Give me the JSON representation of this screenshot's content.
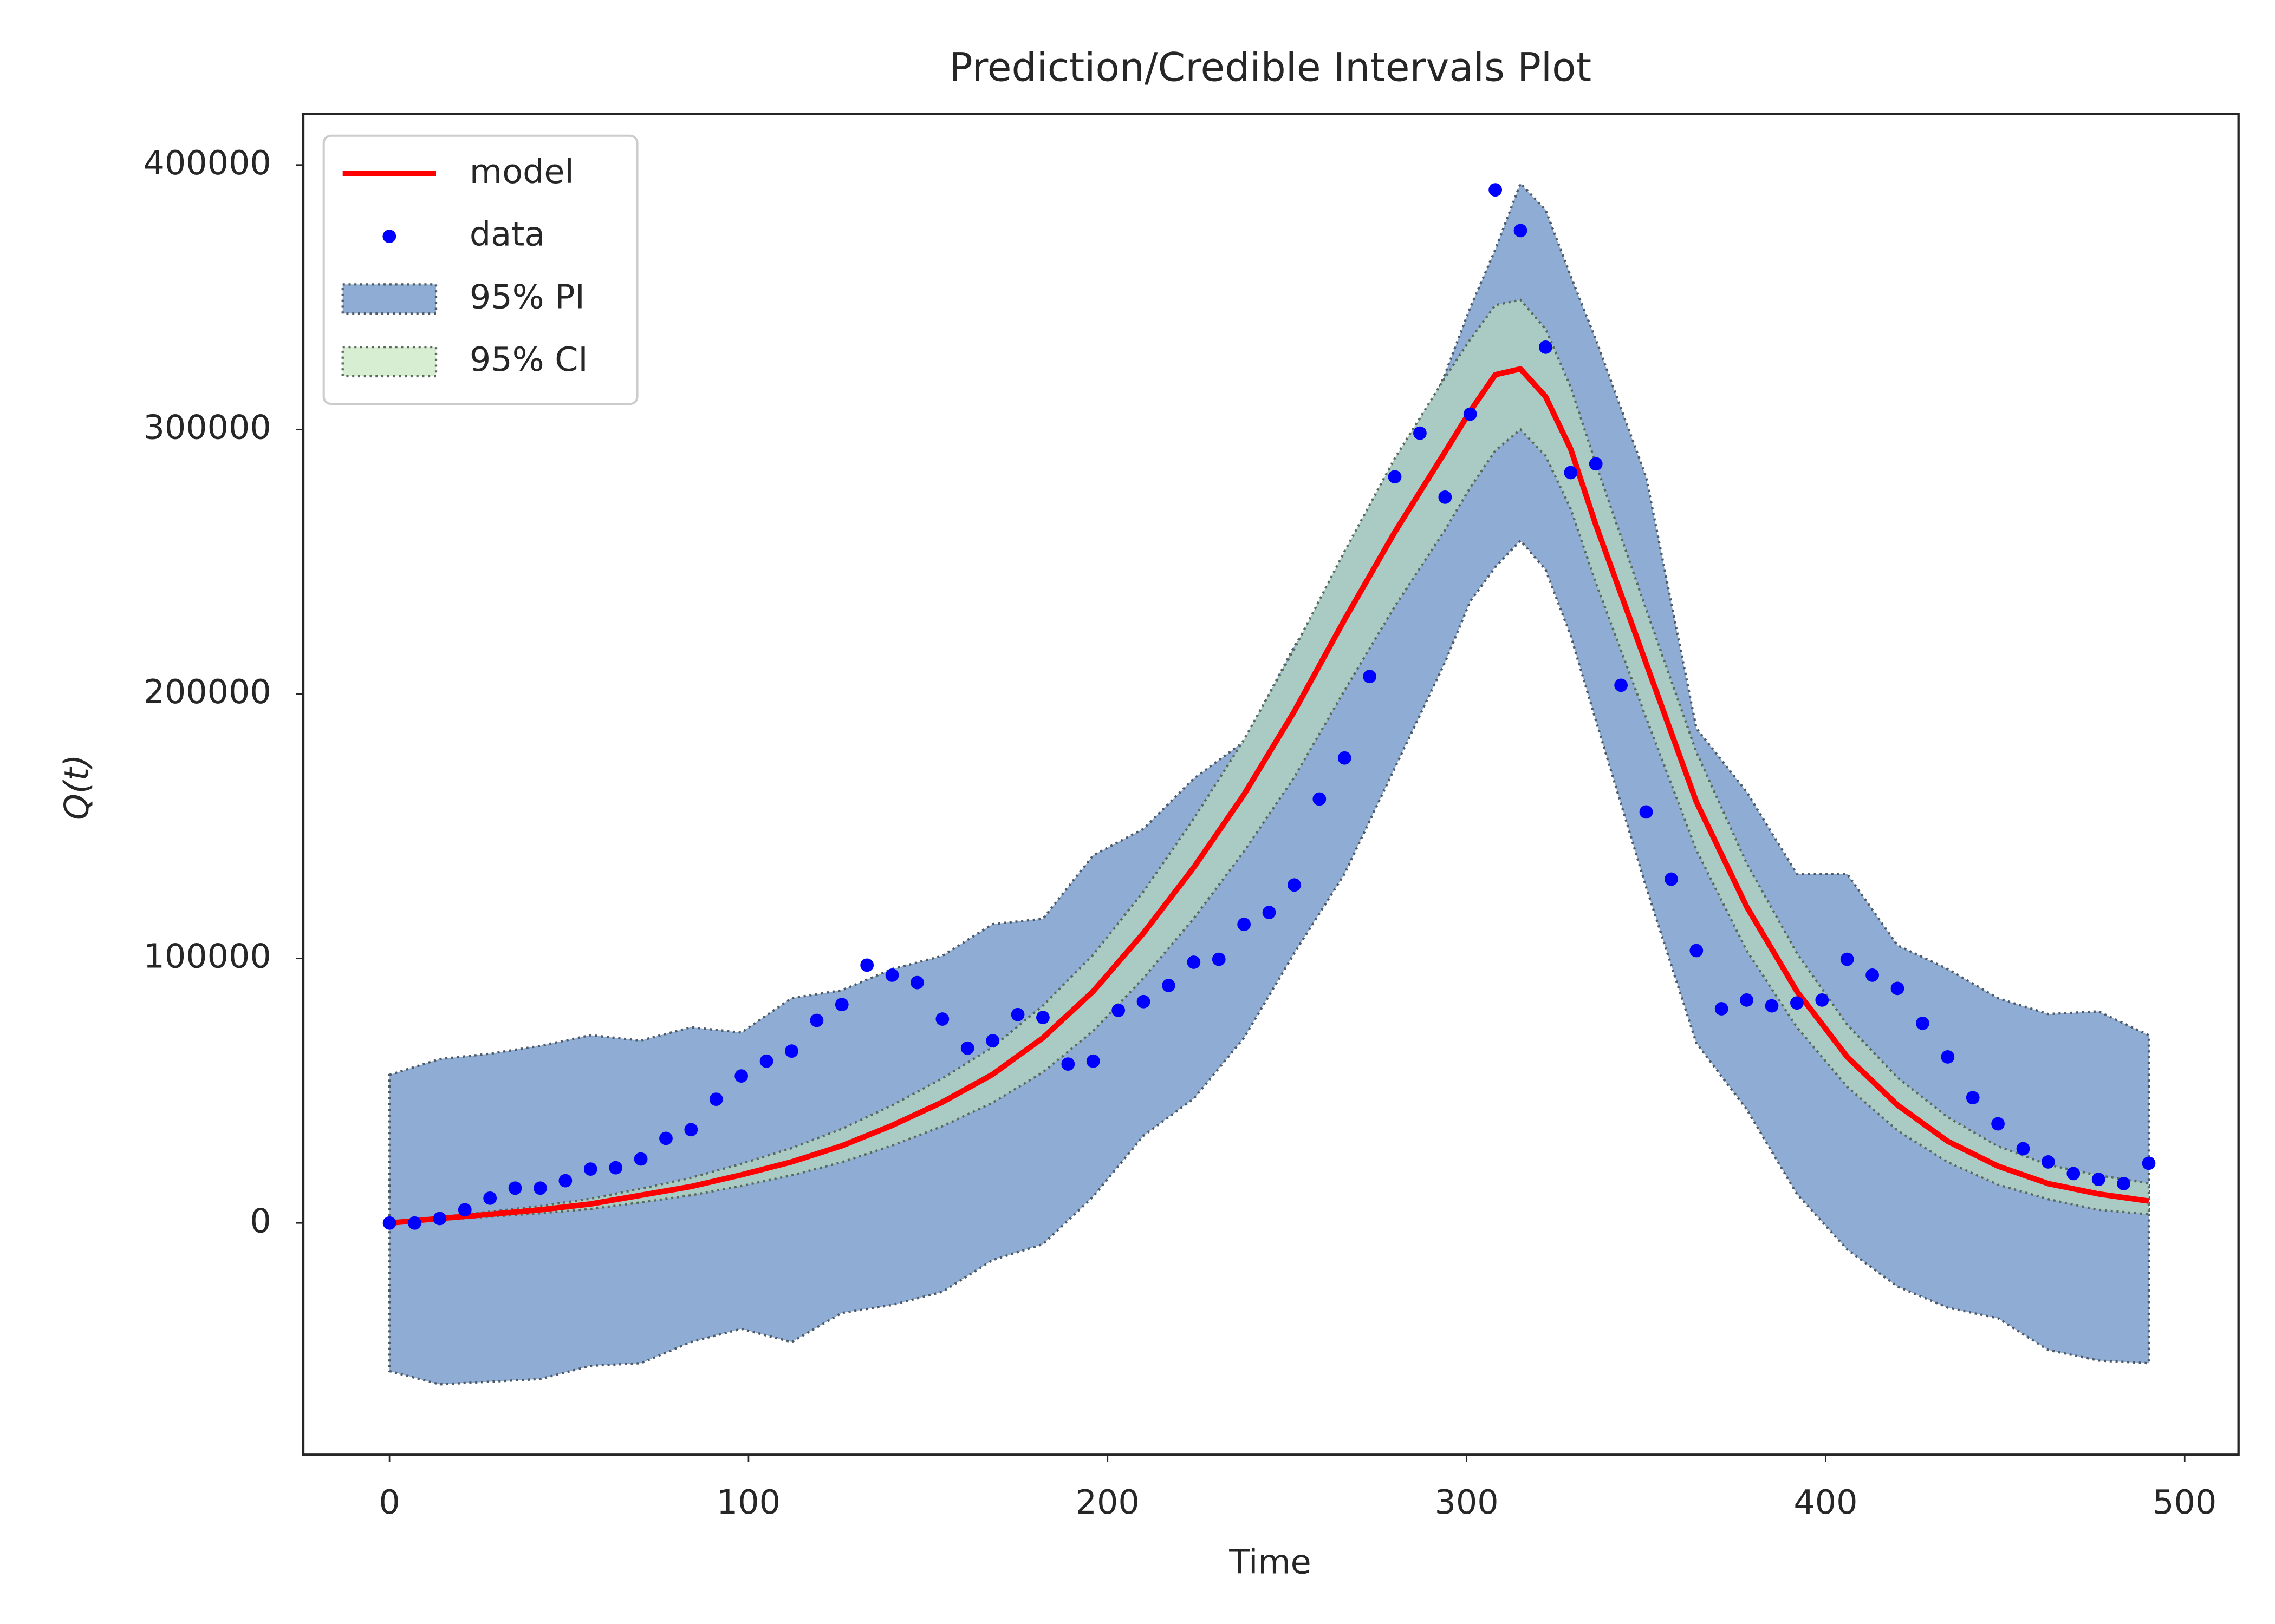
{
  "chart_data": {
    "type": "line",
    "title": "Prediction/Credible Intervals Plot",
    "x_label": "Time",
    "y_label": "Q(t)",
    "xlim": [
      -24,
      515
    ],
    "ylim": [
      -87600,
      419300
    ],
    "xticks": [
      0,
      100,
      200,
      300,
      400,
      500
    ],
    "yticks": [
      0,
      100000,
      200000,
      300000,
      400000
    ],
    "grid": false,
    "legend": "upper left",
    "bands": [
      {
        "name": "95% PI",
        "color": "#8fadd4",
        "edge_color": "#4d5a66",
        "x": [
          0,
          14,
          28,
          42,
          56,
          70,
          84,
          98,
          112,
          126,
          140,
          154,
          168,
          182,
          196,
          210,
          224,
          238,
          252,
          266,
          280,
          294,
          301,
          308,
          315,
          322,
          329,
          336,
          350,
          364,
          378,
          392,
          406,
          420,
          434,
          448,
          462,
          476,
          490
        ],
        "upper": [
          56000,
          62000,
          64000,
          67000,
          71000,
          69000,
          74000,
          72000,
          85000,
          88000,
          96000,
          101000,
          113000,
          115000,
          139000,
          149000,
          168000,
          182000,
          218000,
          248000,
          275000,
          321000,
          346000,
          368000,
          393000,
          383000,
          358000,
          334000,
          282000,
          187000,
          163000,
          132000,
          132000,
          105000,
          96000,
          85000,
          79000,
          80000,
          71000
        ],
        "lower": [
          -56000,
          -61000,
          -60000,
          -59000,
          -54000,
          -53000,
          -45000,
          -40000,
          -45000,
          -34000,
          -31000,
          -26000,
          -14000,
          -8000,
          10000,
          33000,
          47000,
          70000,
          102000,
          132000,
          172000,
          212000,
          235000,
          248000,
          258000,
          247000,
          222000,
          190000,
          127000,
          68000,
          43000,
          11000,
          -10000,
          -24000,
          -32000,
          -36000,
          -48000,
          -52000,
          -53000
        ]
      },
      {
        "name": "95% CI",
        "color": "#aacbc4",
        "legend_color": "#d8eed2",
        "edge_color": "#5a6a5a",
        "x": [
          0,
          14,
          28,
          42,
          56,
          70,
          84,
          98,
          112,
          126,
          140,
          154,
          168,
          182,
          196,
          210,
          224,
          238,
          252,
          266,
          280,
          294,
          301,
          308,
          315,
          322,
          329,
          336,
          350,
          364,
          378,
          392,
          406,
          420,
          434,
          448,
          462,
          476,
          490
        ],
        "upper": [
          0,
          2200,
          4300,
          6400,
          9200,
          13000,
          17100,
          22400,
          28300,
          35600,
          44500,
          54700,
          66500,
          82200,
          101400,
          125300,
          152800,
          182700,
          217000,
          253900,
          289100,
          319600,
          334000,
          347000,
          349000,
          338000,
          316000,
          287000,
          232000,
          178000,
          136000,
          102000,
          75000,
          55000,
          40000,
          29000,
          22000,
          18000,
          15000
        ],
        "lower": [
          0,
          1200,
          2400,
          3700,
          5300,
          7800,
          10500,
          14000,
          18000,
          23000,
          29300,
          36600,
          45500,
          57000,
          72600,
          92600,
          115100,
          140500,
          168500,
          201300,
          233100,
          262000,
          278000,
          292000,
          300000,
          290000,
          270000,
          242000,
          191000,
          141000,
          103000,
          74000,
          51500,
          35000,
          23000,
          14500,
          9000,
          5000,
          3300
        ]
      }
    ],
    "series": [
      {
        "name": "model",
        "color": "#ff0000",
        "x": [
          0,
          14,
          28,
          42,
          56,
          70,
          84,
          98,
          112,
          126,
          140,
          154,
          168,
          182,
          196,
          210,
          224,
          238,
          252,
          266,
          280,
          294,
          301,
          308,
          315,
          322,
          329,
          336,
          350,
          364,
          378,
          392,
          406,
          420,
          434,
          448,
          462,
          476,
          490
        ],
        "values": [
          0,
          1700,
          3300,
          5000,
          7200,
          10500,
          13800,
          18200,
          23100,
          29200,
          36900,
          45700,
          56200,
          70000,
          87600,
          109600,
          134400,
          162000,
          193400,
          228100,
          261200,
          291500,
          306900,
          320700,
          322900,
          312400,
          292600,
          263900,
          211600,
          159200,
          119600,
          87600,
          62800,
          44600,
          30900,
          21500,
          14900,
          11000,
          8300
        ]
      },
      {
        "name": "data",
        "color": "#0000ff",
        "x": [
          0,
          7,
          14,
          21,
          28,
          35,
          42,
          49,
          56,
          63,
          70,
          77,
          84,
          91,
          98,
          105,
          112,
          119,
          126,
          133,
          140,
          147,
          154,
          161,
          168,
          175,
          182,
          189,
          196,
          203,
          210,
          217,
          224,
          231,
          238,
          245,
          252,
          259,
          266,
          273,
          280,
          287,
          294,
          301,
          308,
          315,
          322,
          329,
          336,
          343,
          350,
          357,
          364,
          371,
          378,
          385,
          392,
          399,
          406,
          413,
          420,
          427,
          434,
          441,
          448,
          455,
          462,
          469,
          476,
          483,
          490
        ],
        "values": [
          0,
          0,
          1700,
          5000,
          9400,
          13200,
          13200,
          16000,
          20400,
          20900,
          24200,
          32000,
          35300,
          46800,
          55600,
          61200,
          65000,
          76600,
          82600,
          97500,
          93700,
          90900,
          77100,
          66100,
          68900,
          78800,
          77700,
          60100,
          61200,
          80400,
          83700,
          89800,
          98600,
          99700,
          112900,
          117400,
          127800,
          160300,
          175800,
          206600,
          282100,
          298600,
          274400,
          305800,
          390600,
          375200,
          331100,
          283700,
          287000,
          203300,
          155400,
          130000,
          103000,
          81000,
          84300,
          82100,
          83200,
          84300,
          99700,
          93700,
          88700,
          75500,
          62800,
          47400,
          37500,
          28100,
          23100,
          18700,
          16500,
          14900,
          22600
        ]
      }
    ]
  }
}
